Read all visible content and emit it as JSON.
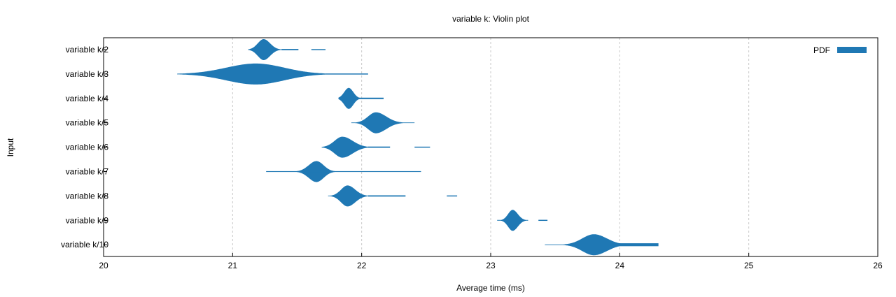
{
  "chart_data": {
    "type": "violin",
    "title": "variable k: Violin plot",
    "xlabel": "Average time (ms)",
    "ylabel": "Input",
    "xlim": [
      20,
      26
    ],
    "xticks": [
      20,
      21,
      22,
      23,
      24,
      25,
      26
    ],
    "grid": true,
    "legend": {
      "label": "PDF",
      "position": "top-right"
    },
    "color": "#1f78b4",
    "categories": [
      "variable k/2",
      "variable k/3",
      "variable k/4",
      "variable k/5",
      "variable k/6",
      "variable k/7",
      "variable k/8",
      "variable k/9",
      "variable k/10"
    ],
    "series": [
      {
        "name": "variable k/2",
        "mode": 21.24,
        "sd_left": 0.045,
        "sd_right": 0.05,
        "peak": 1.0,
        "extent": [
          21.12,
          21.5
        ],
        "tails": [
          {
            "from": 21.38,
            "to": 21.51,
            "h": 0.06
          },
          {
            "from": 21.61,
            "to": 21.72,
            "h": 0.05
          }
        ]
      },
      {
        "name": "variable k/3",
        "mode": 21.18,
        "sd_left": 0.23,
        "sd_right": 0.22,
        "peak": 1.0,
        "extent": [
          20.57,
          21.72
        ],
        "tails": [
          {
            "from": 21.72,
            "to": 22.05,
            "h": 0.05
          }
        ]
      },
      {
        "name": "variable k/4",
        "mode": 21.9,
        "sd_left": 0.035,
        "sd_right": 0.035,
        "peak": 1.0,
        "extent": [
          21.82,
          22.01
        ],
        "tails": [
          {
            "from": 21.98,
            "to": 22.17,
            "h": 0.07
          }
        ]
      },
      {
        "name": "variable k/5",
        "mode": 22.11,
        "sd_left": 0.06,
        "sd_right": 0.08,
        "peak": 1.0,
        "extent": [
          21.92,
          22.41
        ],
        "tails": []
      },
      {
        "name": "variable k/6",
        "mode": 21.85,
        "sd_left": 0.06,
        "sd_right": 0.08,
        "peak": 1.0,
        "extent": [
          21.69,
          22.1
        ],
        "tails": [
          {
            "from": 22.05,
            "to": 22.22,
            "h": 0.06
          },
          {
            "from": 22.41,
            "to": 22.53,
            "h": 0.05
          }
        ]
      },
      {
        "name": "variable k/7",
        "mode": 21.65,
        "sd_left": 0.06,
        "sd_right": 0.055,
        "peak": 1.0,
        "extent": [
          21.26,
          21.86
        ],
        "tails": [
          {
            "from": 21.26,
            "to": 22.46,
            "h": 0.04
          }
        ]
      },
      {
        "name": "variable k/8",
        "mode": 21.89,
        "sd_left": 0.05,
        "sd_right": 0.06,
        "peak": 1.0,
        "extent": [
          21.74,
          22.12
        ],
        "tails": [
          {
            "from": 22.05,
            "to": 22.34,
            "h": 0.06
          },
          {
            "from": 22.66,
            "to": 22.74,
            "h": 0.05
          }
        ]
      },
      {
        "name": "variable k/9",
        "mode": 23.17,
        "sd_left": 0.035,
        "sd_right": 0.04,
        "peak": 1.0,
        "extent": [
          23.05,
          23.29
        ],
        "tails": [
          {
            "from": 23.37,
            "to": 23.44,
            "h": 0.05
          }
        ]
      },
      {
        "name": "variable k/10",
        "mode": 23.8,
        "sd_left": 0.09,
        "sd_right": 0.1,
        "peak": 1.0,
        "extent": [
          23.42,
          24.06
        ],
        "tails": [
          {
            "from": 23.95,
            "to": 24.3,
            "h": 0.14
          }
        ]
      }
    ]
  }
}
